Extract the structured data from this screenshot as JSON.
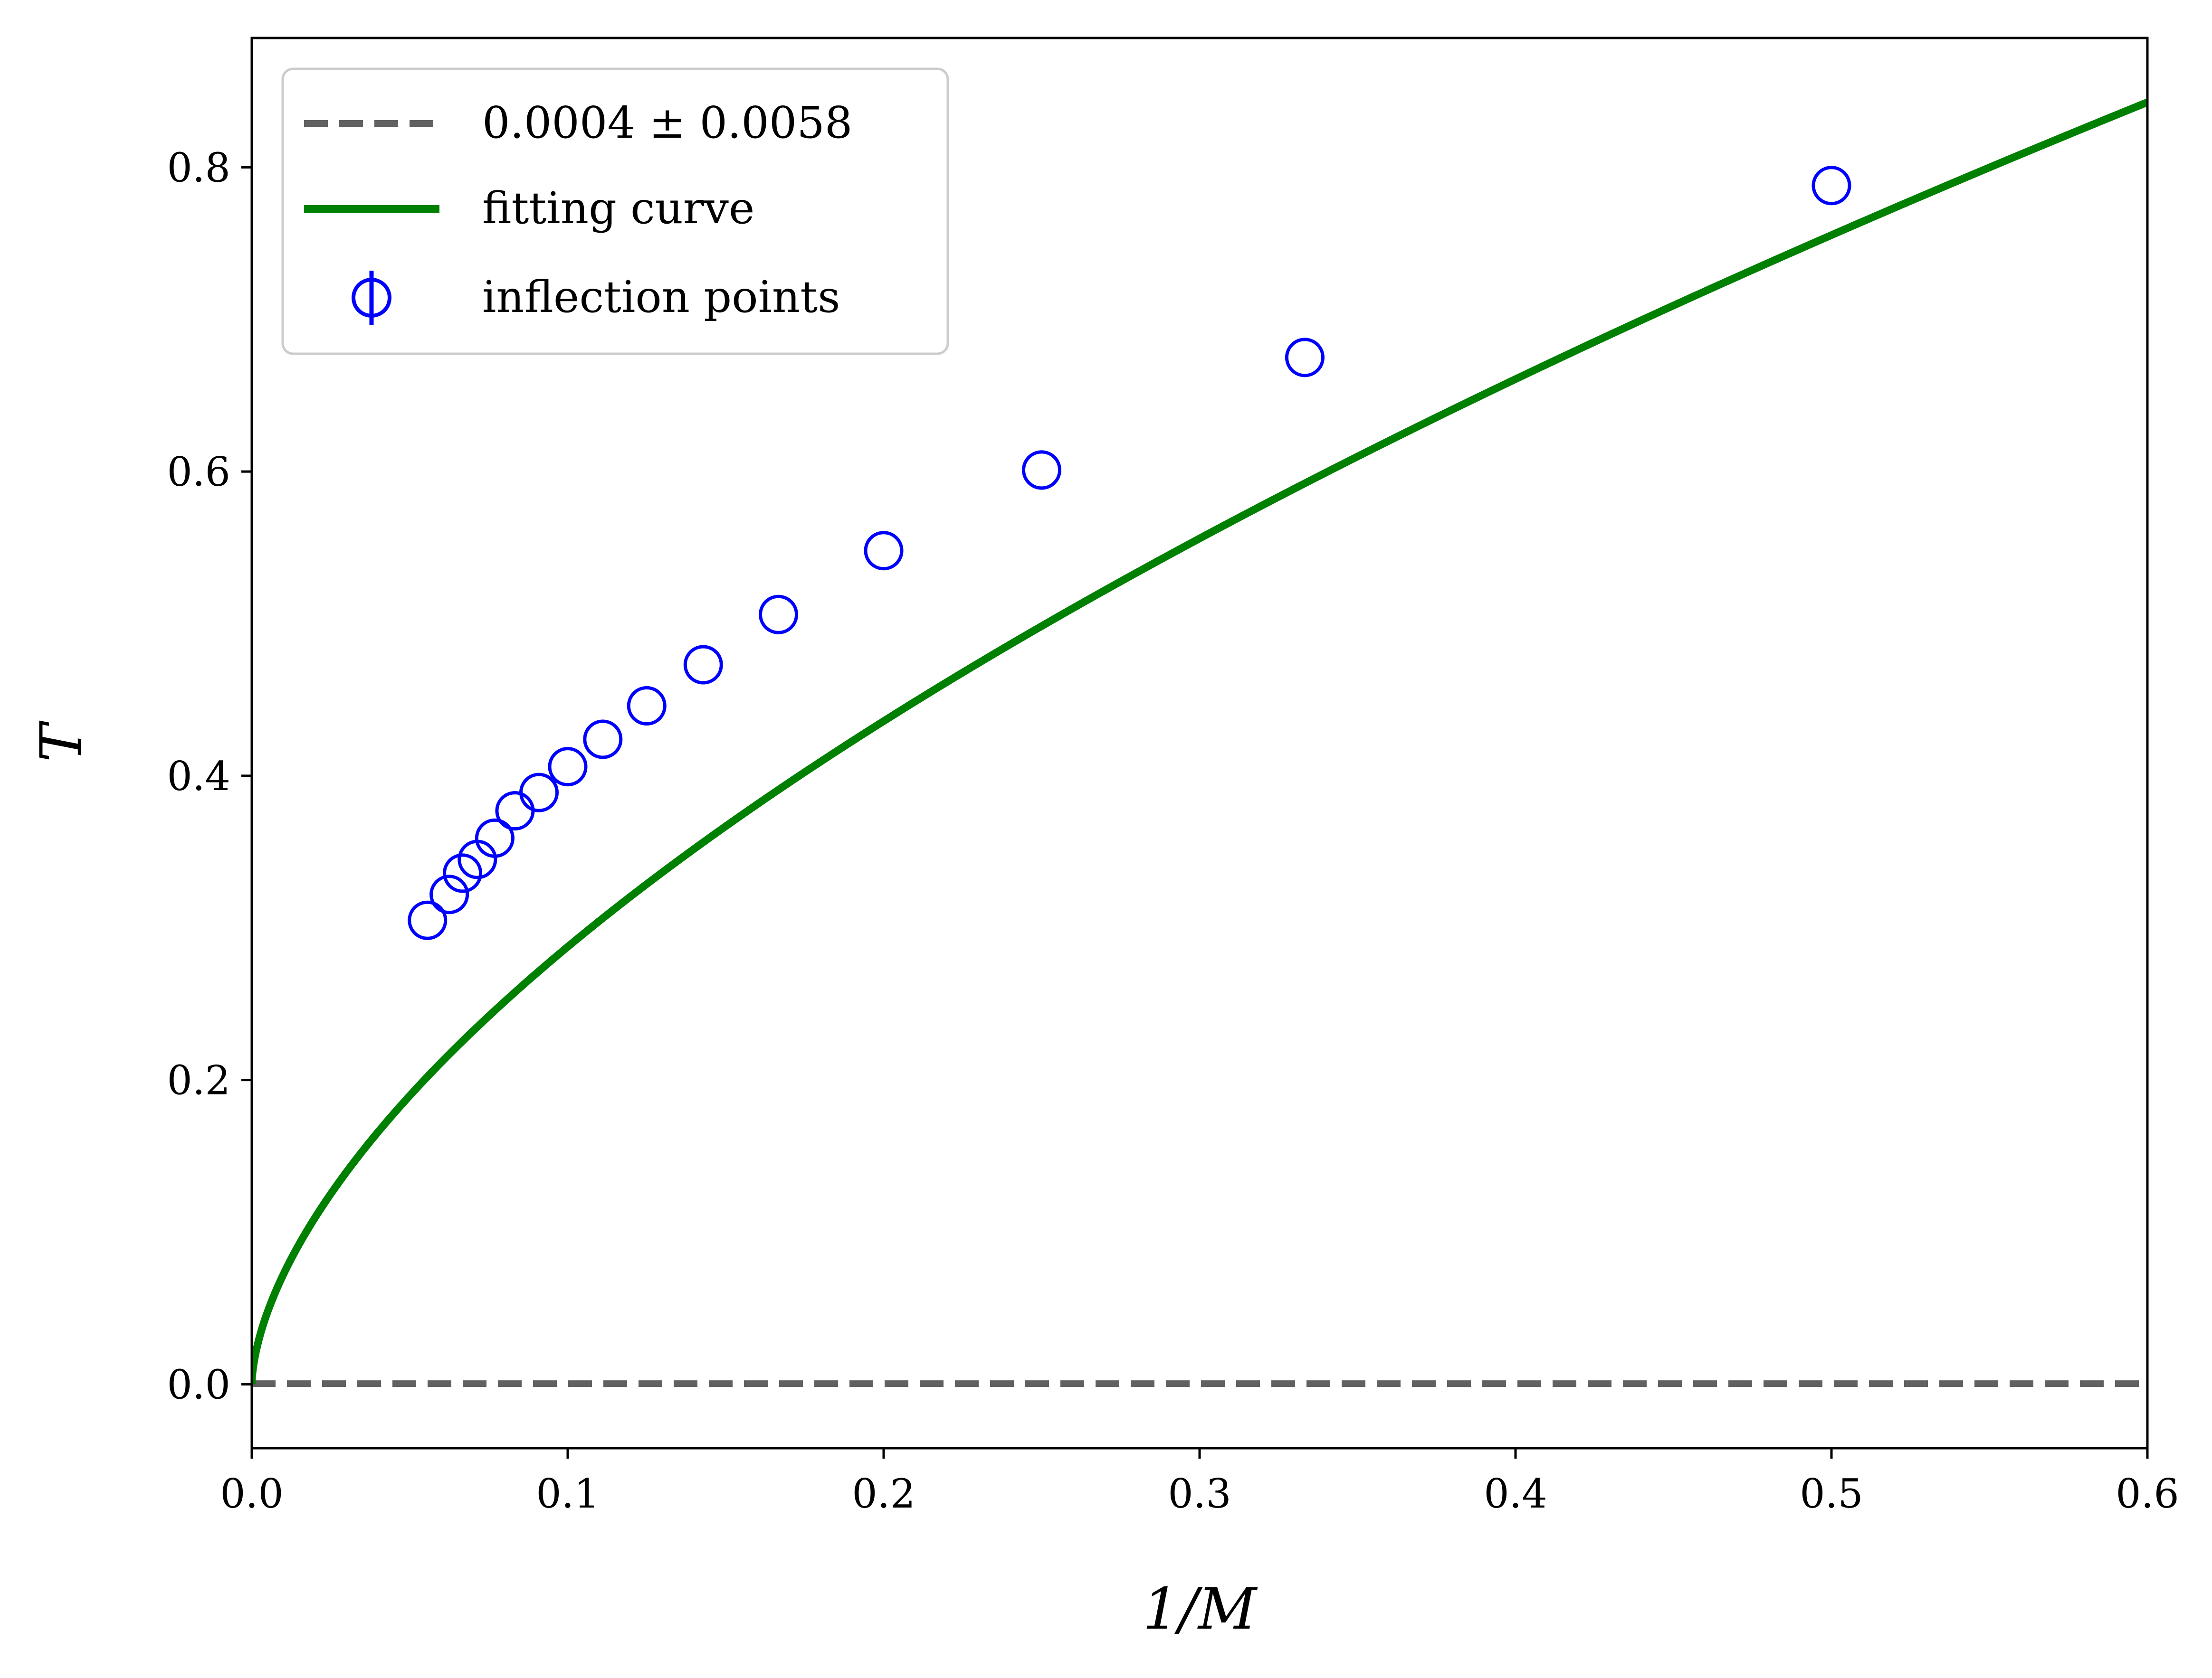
{
  "chart_data": {
    "type": "scatter",
    "title": "",
    "xlabel": "1/M",
    "ylabel": "T",
    "xlim": [
      0.0,
      0.6
    ],
    "ylim": [
      -0.042,
      0.885
    ],
    "x_ticks": [
      0.0,
      0.1,
      0.2,
      0.3,
      0.4,
      0.5,
      0.6
    ],
    "x_tick_labels": [
      "0.0",
      "0.1",
      "0.2",
      "0.3",
      "0.4",
      "0.5",
      "0.6"
    ],
    "y_ticks": [
      0.0,
      0.2,
      0.4,
      0.6,
      0.8
    ],
    "y_tick_labels": [
      "0.0",
      "0.2",
      "0.4",
      "0.6",
      "0.8"
    ],
    "grid": false,
    "legend_position": "upper-left",
    "series": [
      {
        "name": "0.0004 ± 0.0058",
        "kind": "hline",
        "y": 0.0004,
        "color": "#616161",
        "style": "dashed"
      },
      {
        "name": "fitting curve",
        "kind": "line",
        "color": "#008000",
        "model": {
          "form": "a*x^b",
          "a": 1.145,
          "b": 0.6,
          "x_range": [
            0.0,
            0.6
          ]
        }
      },
      {
        "name": "inflection points",
        "kind": "scatter",
        "marker": "open-circle",
        "color": "#0000ff",
        "x": [
          0.0556,
          0.0625,
          0.0667,
          0.0714,
          0.0769,
          0.0833,
          0.0909,
          0.1,
          0.1111,
          0.125,
          0.1429,
          0.1667,
          0.2,
          0.25,
          0.3333,
          0.5
        ],
        "y": [
          0.305,
          0.322,
          0.336,
          0.345,
          0.359,
          0.377,
          0.389,
          0.406,
          0.424,
          0.446,
          0.473,
          0.506,
          0.548,
          0.601,
          0.675,
          0.788
        ]
      }
    ]
  }
}
